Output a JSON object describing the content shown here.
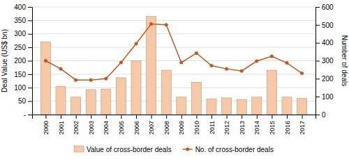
{
  "chart_data": {
    "type": "bar",
    "x": [
      2000,
      2001,
      2002,
      2003,
      2004,
      2005,
      2006,
      2007,
      2008,
      2009,
      2010,
      2011,
      2012,
      2013,
      2014,
      2015,
      2016,
      2017
    ],
    "xlim": [
      1999.1,
      2017.9
    ],
    "xticks": [
      2000,
      2001,
      2002,
      2003,
      2004,
      2005,
      2006,
      2007,
      2008,
      2009,
      2010,
      2011,
      2012,
      2013,
      2014,
      2015,
      2016,
      2017
    ],
    "ylabel": "Deal Value (US$ bn)",
    "y2label": "Number of deals",
    "ylim": [
      0,
      400
    ],
    "yticks": [
      {
        "value": 0,
        "label": "-"
      },
      50,
      100,
      150,
      200,
      250,
      300,
      350,
      400
    ],
    "y2lim": [
      0,
      600
    ],
    "y2ticks": [
      0,
      100,
      200,
      300,
      400,
      500,
      600
    ],
    "grid": true,
    "legend": "bottom",
    "series": [
      {
        "name": "Value of cross-border deals",
        "type": "bar",
        "color": "#f5c9a8",
        "values": [
          270,
          105,
          65,
          93,
          95,
          137,
          200,
          365,
          165,
          65,
          120,
          58,
          62,
          55,
          65,
          165,
          65,
          60
        ]
      },
      {
        "name": "No. of cross-border deals",
        "type": "line",
        "axis": "y2",
        "color": "#c05a20",
        "marker": "circle",
        "values": [
          300,
          255,
          193,
          193,
          200,
          290,
          395,
          505,
          500,
          290,
          343,
          273,
          255,
          243,
          298,
          325,
          288,
          230
        ]
      }
    ]
  }
}
